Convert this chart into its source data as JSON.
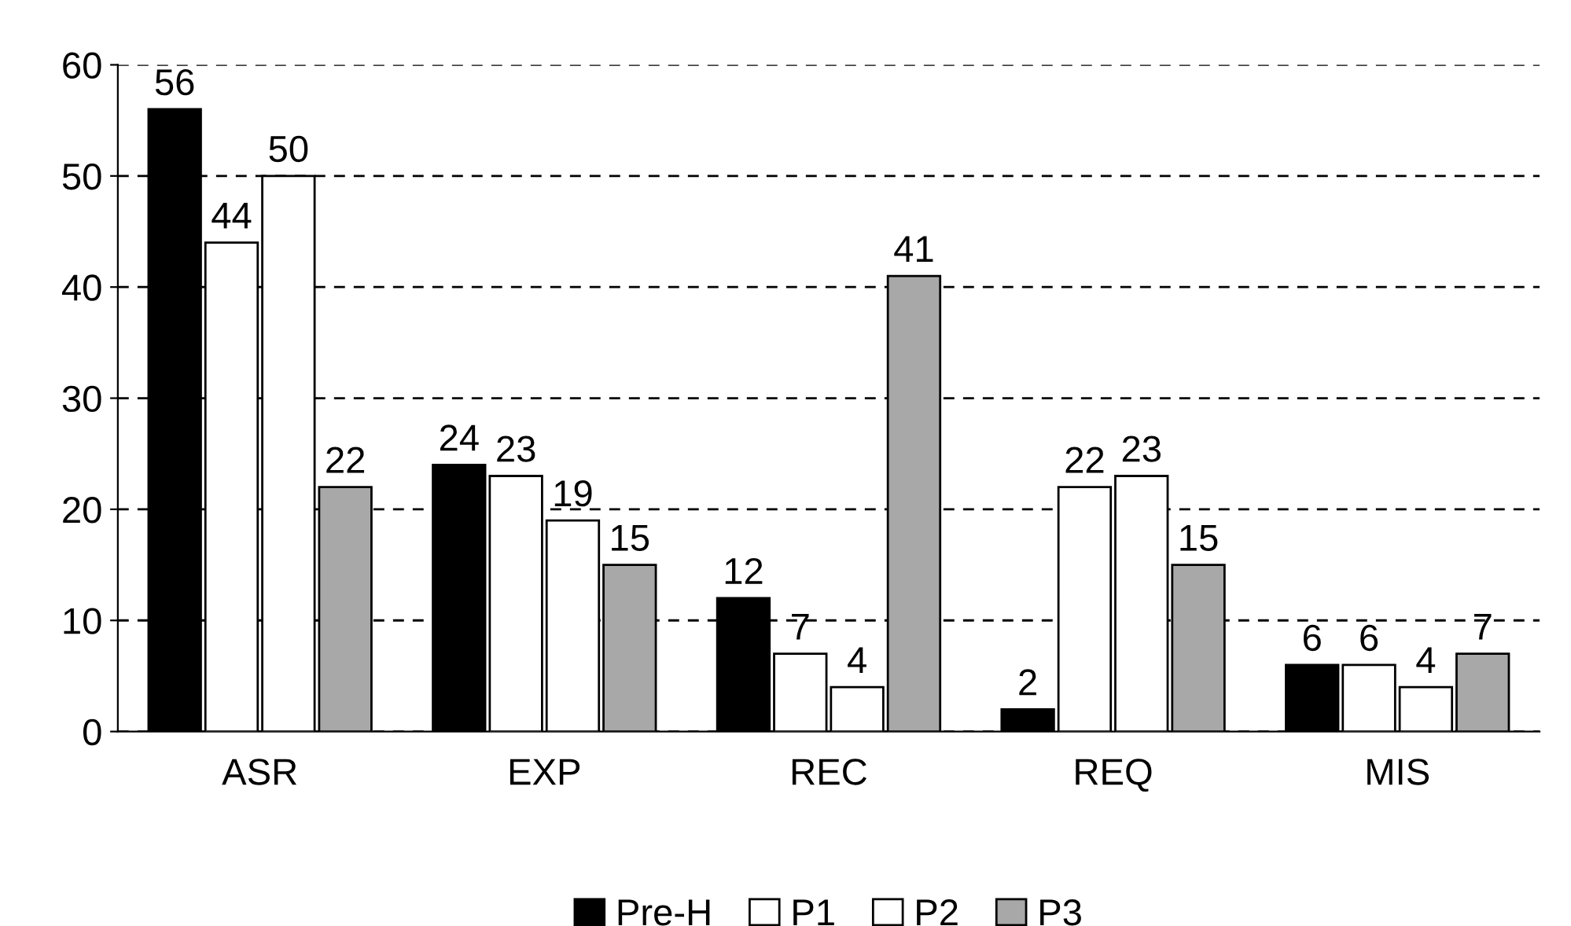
{
  "chart_data": {
    "type": "bar",
    "categories": [
      "ASR",
      "EXP",
      "REC",
      "REQ",
      "MIS"
    ],
    "series": [
      {
        "name": "Pre-H",
        "color": "#000000",
        "values": [
          56,
          24,
          12,
          2,
          6
        ]
      },
      {
        "name": "P1",
        "color": "#ffffff",
        "values": [
          44,
          23,
          7,
          22,
          6
        ]
      },
      {
        "name": "P2",
        "color": "#ffffff",
        "values": [
          50,
          19,
          4,
          23,
          4
        ]
      },
      {
        "name": "P3",
        "color": "#a8a8a8",
        "values": [
          22,
          15,
          41,
          15,
          7
        ]
      }
    ],
    "ylim": [
      0,
      60
    ],
    "yticks": [
      0,
      10,
      20,
      30,
      40,
      50,
      60
    ],
    "grid": "y",
    "legend": "bottom",
    "data_labels": true
  }
}
